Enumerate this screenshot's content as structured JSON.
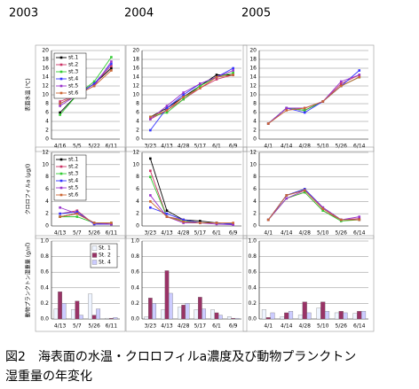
{
  "years": [
    "2003",
    "2004",
    "2005"
  ],
  "caption": [
    "図2　海表面の水温・クロロフィルa濃度及び動物プランクトン",
    "湿重量の年変化"
  ],
  "chart_data": [
    {
      "type": "line",
      "ylabel": "表面水温 (℃)",
      "categories": [
        "4/16",
        "5/5",
        "5/22",
        "6/11"
      ],
      "ylim": [
        0,
        20
      ],
      "yticks": [
        0,
        2,
        4,
        6,
        8,
        10,
        12,
        14,
        16,
        18,
        20
      ],
      "legend": "upper-left",
      "series": [
        {
          "name": "st.1",
          "color": "#000000",
          "values": [
            6,
            10,
            12.5,
            16
          ]
        },
        {
          "name": "st.2",
          "color": "#cc3366",
          "values": [
            8.5,
            10,
            12.5,
            16.5
          ]
        },
        {
          "name": "st.3",
          "color": "#33cc33",
          "values": [
            5.5,
            10,
            13,
            18.5
          ]
        },
        {
          "name": "st.4",
          "color": "#3333ff",
          "values": [
            8,
            10,
            12.5,
            17
          ]
        },
        {
          "name": "st.5",
          "color": "#9933cc",
          "values": [
            7.5,
            10,
            12,
            17.5
          ]
        },
        {
          "name": "st.6",
          "color": "#cc6633",
          "values": [
            8,
            10,
            12,
            15.5
          ]
        }
      ]
    },
    {
      "type": "line",
      "categories": [
        "3/23",
        "4/13",
        "4/28",
        "5/17",
        "6/1",
        "6/9"
      ],
      "ylim": [
        0,
        20
      ],
      "yticks": [
        0,
        2,
        4,
        6,
        8,
        10,
        12,
        14,
        16,
        18,
        20
      ],
      "series": [
        {
          "color": "#000000",
          "values": [
            5,
            7,
            9.5,
            12,
            14.5,
            14.5
          ]
        },
        {
          "color": "#cc3366",
          "values": [
            4.5,
            6.5,
            9,
            11.5,
            13.5,
            14.5
          ]
        },
        {
          "color": "#33cc33",
          "values": [
            5,
            6,
            9,
            12,
            14,
            15
          ]
        },
        {
          "color": "#3333ff",
          "values": [
            2,
            7,
            10,
            12.5,
            14,
            16
          ]
        },
        {
          "color": "#9933cc",
          "values": [
            4.5,
            7.5,
            10.5,
            12.5,
            14,
            15.5
          ]
        },
        {
          "color": "#cc6633",
          "values": [
            5,
            6.5,
            9.5,
            11.5,
            14,
            14.5
          ]
        }
      ]
    },
    {
      "type": "line",
      "categories": [
        "4/1",
        "4/14",
        "4/28",
        "5/10",
        "5/26",
        "6/14"
      ],
      "ylim": [
        0,
        20
      ],
      "yticks": [
        0,
        2,
        4,
        6,
        8,
        10,
        12,
        14,
        16,
        18,
        20
      ],
      "series": [
        {
          "color": "#000000",
          "values": [
            3.5,
            7,
            6.5,
            8.5,
            12,
            14
          ]
        },
        {
          "color": "#cc3366",
          "values": [
            3.5,
            7,
            7,
            8.5,
            12.5,
            14.5
          ]
        },
        {
          "color": "#33cc33",
          "values": [
            3.5,
            7,
            6.5,
            8.5,
            12,
            14
          ]
        },
        {
          "color": "#3333ff",
          "values": [
            3.5,
            7,
            6,
            8.5,
            12,
            15.5
          ]
        },
        {
          "color": "#9933cc",
          "values": [
            3.5,
            7,
            7,
            8.5,
            13,
            14.5
          ]
        },
        {
          "color": "#cc6633",
          "values": [
            3.5,
            6.5,
            7,
            8.5,
            12,
            14
          ]
        }
      ]
    },
    {
      "type": "line",
      "ylabel": "クロロフィルa (μg/l)",
      "categories": [
        "4/13",
        "5/7",
        "5/26",
        "6/11"
      ],
      "ylim": [
        0,
        12
      ],
      "yticks": [
        0,
        2,
        4,
        6,
        8,
        10,
        12
      ],
      "legend": "upper-left",
      "series": [
        {
          "name": "st.1",
          "color": "#000000",
          "values": [
            1.5,
            2,
            0.5,
            0.3
          ]
        },
        {
          "name": "st.2",
          "color": "#cc3366",
          "values": [
            2,
            2.5,
            0.3,
            0.3
          ]
        },
        {
          "name": "st.3",
          "color": "#33cc33",
          "values": [
            1.5,
            1.5,
            0.5,
            0.5
          ]
        },
        {
          "name": "st.4",
          "color": "#3333ff",
          "values": [
            2,
            2.3,
            0.3,
            0.3
          ]
        },
        {
          "name": "st.5",
          "color": "#9933cc",
          "values": [
            3,
            2,
            0.5,
            0.3
          ]
        },
        {
          "name": "st.6",
          "color": "#cc6633",
          "values": [
            1.5,
            2,
            0.5,
            0.5
          ]
        }
      ]
    },
    {
      "type": "line",
      "categories": [
        "3/23",
        "4/13",
        "4/28",
        "5/17",
        "6/1",
        "6/9"
      ],
      "ylim": [
        0,
        12
      ],
      "yticks": [
        0,
        2,
        4,
        6,
        8,
        10,
        12
      ],
      "series": [
        {
          "color": "#000000",
          "values": [
            11,
            2.5,
            1,
            0.8,
            0.5,
            0.3
          ]
        },
        {
          "color": "#cc3366",
          "values": [
            9,
            1.5,
            1,
            0.5,
            0.5,
            0.3
          ]
        },
        {
          "color": "#33cc33",
          "values": [
            8,
            1.5,
            0.8,
            0.5,
            0.5,
            0.3
          ]
        },
        {
          "color": "#3333ff",
          "values": [
            3,
            2,
            1,
            0.5,
            0.5,
            0.3
          ]
        },
        {
          "color": "#9933cc",
          "values": [
            5,
            1.5,
            0.5,
            0.5,
            0.3,
            0.2
          ]
        },
        {
          "color": "#cc6633",
          "values": [
            4,
            1.5,
            0.7,
            0.5,
            0.5,
            0.5
          ]
        }
      ]
    },
    {
      "type": "line",
      "categories": [
        "4/1",
        "4/14",
        "4/28",
        "5/10",
        "5/26",
        "6/14"
      ],
      "ylim": [
        0,
        12
      ],
      "yticks": [
        0,
        2,
        4,
        6,
        8,
        10,
        12
      ],
      "series": [
        {
          "color": "#000000",
          "values": [
            1,
            5,
            6,
            3,
            1,
            1
          ]
        },
        {
          "color": "#cc3366",
          "values": [
            1,
            4.5,
            5.5,
            2.5,
            1,
            1.2
          ]
        },
        {
          "color": "#33cc33",
          "values": [
            1,
            4.5,
            5.5,
            2.5,
            0.8,
            1
          ]
        },
        {
          "color": "#3333ff",
          "values": [
            1,
            5,
            6,
            3,
            1,
            1
          ]
        },
        {
          "color": "#9933cc",
          "values": [
            1,
            4.5,
            5.8,
            3,
            1,
            1.5
          ]
        },
        {
          "color": "#cc6633",
          "values": [
            1,
            5,
            5.8,
            2.8,
            1,
            1
          ]
        }
      ]
    },
    {
      "type": "bar",
      "ylabel": "動物プランクトン湿重量 (g/㎥)",
      "categories": [
        "4/13",
        "5/7",
        "5/26",
        "6/11"
      ],
      "ylim": [
        0,
        1
      ],
      "yticks": [
        {
          "value": 0,
          "label": "0.0"
        },
        {
          "value": 0.2,
          "label": "0.2"
        },
        {
          "value": 0.4,
          "label": "0.4"
        },
        {
          "value": 0.6,
          "label": "0.6"
        },
        {
          "value": 0.8,
          "label": "0.8"
        },
        {
          "value": 1,
          "label": "1.0"
        }
      ],
      "legend": "upper-right",
      "series": [
        {
          "name": "St. 1",
          "color": "#eef4ff",
          "values": [
            0.13,
            0.12,
            0.32,
            0.01
          ]
        },
        {
          "name": "St. 2",
          "color": "#993366",
          "values": [
            0.35,
            0.23,
            0.05,
            0.01
          ]
        },
        {
          "name": "St. 4",
          "color": "#ccccff",
          "values": [
            0.2,
            0.05,
            0.13,
            0.02
          ]
        }
      ]
    },
    {
      "type": "bar",
      "categories": [
        "3/23",
        "4/13",
        "4/28",
        "5/17",
        "6/1",
        "6/9"
      ],
      "ylim": [
        0,
        1
      ],
      "yticks": [
        {
          "value": 0,
          "label": "0.0"
        },
        {
          "value": 0.2,
          "label": "0.2"
        },
        {
          "value": 0.4,
          "label": "0.4"
        },
        {
          "value": 0.6,
          "label": "0.6"
        },
        {
          "value": 0.8,
          "label": "0.8"
        },
        {
          "value": 1,
          "label": "1.0"
        }
      ],
      "series": [
        {
          "color": "#eef4ff",
          "values": [
            0.03,
            0.12,
            0.15,
            0.12,
            0.12,
            0.03
          ]
        },
        {
          "color": "#993366",
          "values": [
            0.27,
            0.62,
            0.18,
            0.28,
            0.08,
            0.01
          ]
        },
        {
          "color": "#ccccff",
          "values": [
            0.2,
            0.33,
            0.2,
            0.13,
            0.05,
            0.01
          ]
        }
      ]
    },
    {
      "type": "bar",
      "categories": [
        "4/1",
        "4/14",
        "4/28",
        "5/10",
        "5/26",
        "6/14"
      ],
      "ylim": [
        0,
        1
      ],
      "yticks": [
        {
          "value": 0,
          "label": "0.0"
        },
        {
          "value": 0.2,
          "label": "0.2"
        },
        {
          "value": 0.4,
          "label": "0.4"
        },
        {
          "value": 0.6,
          "label": "0.6"
        },
        {
          "value": 0.8,
          "label": "0.8"
        },
        {
          "value": 1,
          "label": "1.0"
        }
      ],
      "series": [
        {
          "color": "#eef4ff",
          "values": [
            0.12,
            0.03,
            0.05,
            0.14,
            0.08,
            0.07
          ]
        },
        {
          "color": "#993366",
          "values": [
            0.02,
            0.08,
            0.22,
            0.22,
            0.1,
            0.1
          ]
        },
        {
          "color": "#ccccff",
          "values": [
            0.08,
            0.1,
            0.08,
            0.1,
            0.08,
            0.1
          ]
        }
      ]
    }
  ]
}
